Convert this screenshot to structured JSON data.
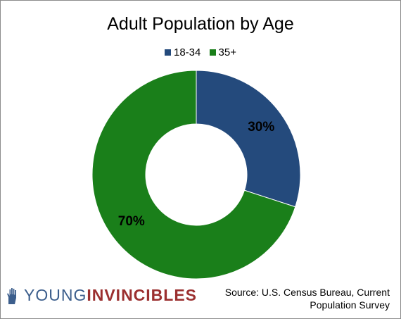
{
  "chart_data": {
    "type": "pie",
    "title": "Adult Population by Age",
    "donut": true,
    "legend_position": "top",
    "slices": [
      {
        "label": "18-34",
        "value": 30,
        "display": "30%",
        "color": "#244a7c"
      },
      {
        "label": "35+",
        "value": 70,
        "display": "70%",
        "color": "#1a7f1a"
      }
    ]
  },
  "footer": {
    "source_line1": "Source: U.S. Census Bureau, Current",
    "source_line2": "Population Survey",
    "logo_part1": "YOUNG",
    "logo_part2": "INVINCIBLES"
  }
}
